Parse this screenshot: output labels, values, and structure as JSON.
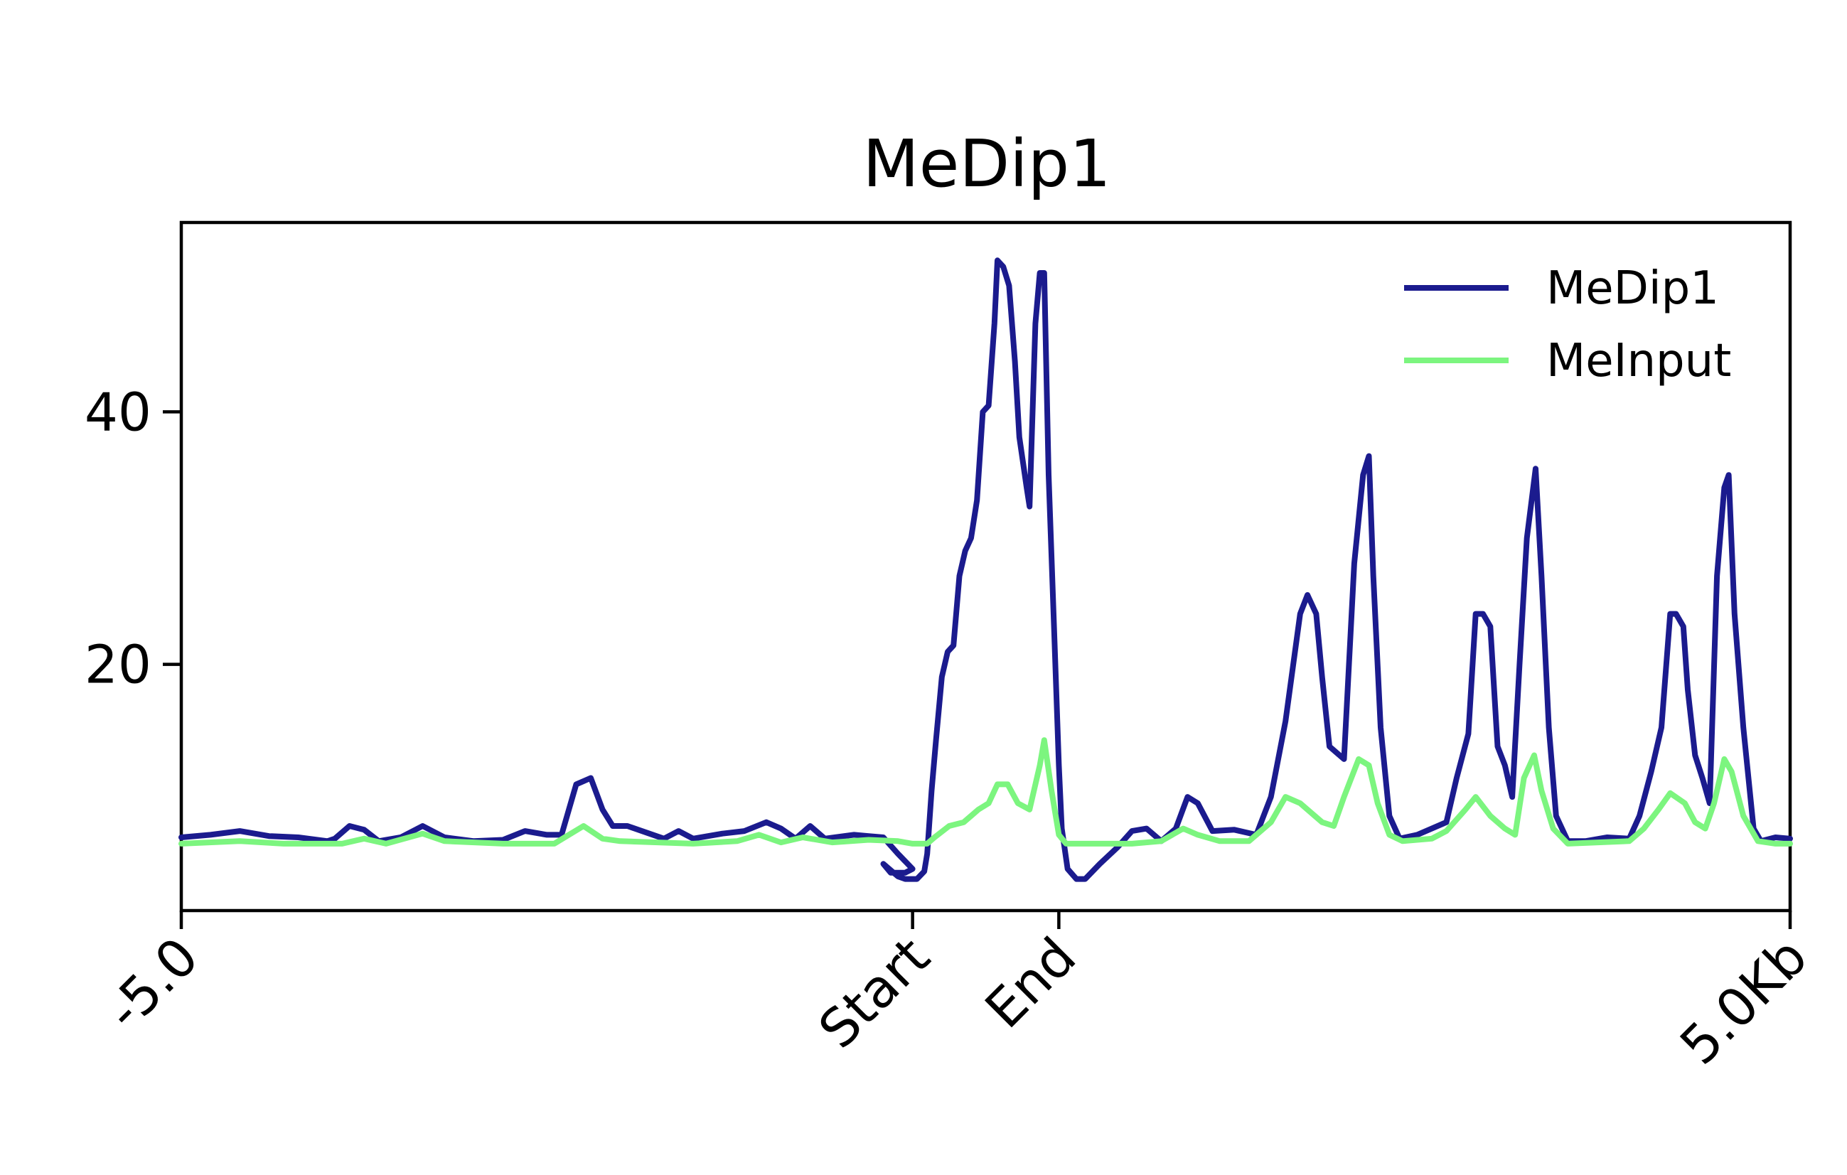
{
  "chart_data": {
    "type": "line",
    "title": "MeDip1",
    "xlabel": "",
    "ylabel": "",
    "x_ticks": [
      {
        "pos": -5.0,
        "label": "-5.0"
      },
      {
        "pos": 0.0,
        "label": "Start"
      },
      {
        "pos": 1.0,
        "label": "End"
      },
      {
        "pos": 6.0,
        "label": "5.0Kb"
      }
    ],
    "y_ticks": [
      {
        "value": 20,
        "label": "20"
      },
      {
        "value": 40,
        "label": "40"
      }
    ],
    "xlim": [
      -5.0,
      6.0
    ],
    "ylim": [
      0.5,
      55
    ],
    "grid": false,
    "legend_position": "top-right",
    "series": [
      {
        "name": "MeDip1",
        "color": "#1b1b8e",
        "points": [
          [
            -5.0,
            6.3
          ],
          [
            -4.8,
            6.5
          ],
          [
            -4.6,
            6.8
          ],
          [
            -4.4,
            6.4
          ],
          [
            -4.2,
            6.3
          ],
          [
            -4.0,
            6.0
          ],
          [
            -3.95,
            6.2
          ],
          [
            -3.85,
            7.2
          ],
          [
            -3.75,
            6.9
          ],
          [
            -3.65,
            6.0
          ],
          [
            -3.5,
            6.3
          ],
          [
            -3.35,
            7.2
          ],
          [
            -3.2,
            6.3
          ],
          [
            -3.0,
            6.0
          ],
          [
            -2.8,
            6.1
          ],
          [
            -2.65,
            6.8
          ],
          [
            -2.5,
            6.5
          ],
          [
            -2.4,
            6.5
          ],
          [
            -2.35,
            8.5
          ],
          [
            -2.3,
            10.5
          ],
          [
            -2.2,
            11.0
          ],
          [
            -2.12,
            8.5
          ],
          [
            -2.05,
            7.2
          ],
          [
            -1.95,
            7.2
          ],
          [
            -1.8,
            6.6
          ],
          [
            -1.7,
            6.2
          ],
          [
            -1.6,
            6.8
          ],
          [
            -1.5,
            6.2
          ],
          [
            -1.3,
            6.6
          ],
          [
            -1.15,
            6.8
          ],
          [
            -1.0,
            7.5
          ],
          [
            -0.9,
            7.0
          ],
          [
            -0.8,
            6.2
          ],
          [
            -0.7,
            7.2
          ],
          [
            -0.6,
            6.2
          ],
          [
            -0.4,
            6.5
          ],
          [
            -0.3,
            6.4
          ],
          [
            -0.2,
            6.3
          ],
          [
            -0.1,
            5.0
          ],
          [
            0.0,
            3.8
          ],
          [
            -0.05,
            3.5
          ],
          [
            -0.15,
            3.5
          ],
          [
            -0.2,
            4.2
          ],
          [
            -0.1,
            3.2
          ],
          [
            -0.05,
            3.0
          ],
          [
            0.03,
            3.0
          ],
          [
            0.08,
            3.6
          ],
          [
            0.1,
            5.0
          ],
          [
            0.13,
            10.0
          ],
          [
            0.16,
            14.0
          ],
          [
            0.2,
            19.0
          ],
          [
            0.24,
            21.0
          ],
          [
            0.28,
            21.5
          ],
          [
            0.32,
            27.0
          ],
          [
            0.36,
            29.0
          ],
          [
            0.4,
            30.0
          ],
          [
            0.44,
            33.0
          ],
          [
            0.48,
            40.0
          ],
          [
            0.52,
            40.5
          ],
          [
            0.56,
            47.0
          ],
          [
            0.58,
            52.0
          ],
          [
            0.62,
            51.5
          ],
          [
            0.66,
            50.0
          ],
          [
            0.7,
            44.0
          ],
          [
            0.73,
            38.0
          ],
          [
            0.78,
            34.0
          ],
          [
            0.8,
            32.5
          ],
          [
            0.84,
            47.0
          ],
          [
            0.87,
            51.0
          ],
          [
            0.9,
            51.0
          ],
          [
            0.93,
            35.0
          ],
          [
            0.97,
            22.0
          ],
          [
            1.0,
            12.0
          ],
          [
            1.02,
            7.0
          ],
          [
            1.06,
            3.8
          ],
          [
            1.12,
            3.0
          ],
          [
            1.18,
            3.0
          ],
          [
            1.28,
            4.2
          ],
          [
            1.4,
            5.5
          ],
          [
            1.5,
            6.8
          ],
          [
            1.6,
            7.0
          ],
          [
            1.7,
            6.0
          ],
          [
            1.8,
            7.0
          ],
          [
            1.88,
            9.5
          ],
          [
            1.95,
            9.0
          ],
          [
            2.05,
            6.8
          ],
          [
            2.2,
            6.9
          ],
          [
            2.35,
            6.5
          ],
          [
            2.45,
            9.5
          ],
          [
            2.55,
            15.5
          ],
          [
            2.65,
            24.0
          ],
          [
            2.7,
            25.5
          ],
          [
            2.76,
            24.0
          ],
          [
            2.8,
            19.0
          ],
          [
            2.85,
            13.5
          ],
          [
            2.9,
            13.0
          ],
          [
            2.95,
            12.5
          ],
          [
            3.02,
            28.0
          ],
          [
            3.08,
            35.0
          ],
          [
            3.12,
            36.5
          ],
          [
            3.15,
            27.0
          ],
          [
            3.2,
            15.0
          ],
          [
            3.26,
            8.0
          ],
          [
            3.33,
            6.2
          ],
          [
            3.45,
            6.5
          ],
          [
            3.55,
            7.0
          ],
          [
            3.65,
            7.5
          ],
          [
            3.72,
            11.0
          ],
          [
            3.8,
            14.5
          ],
          [
            3.85,
            24.0
          ],
          [
            3.9,
            24.0
          ],
          [
            3.95,
            23.0
          ],
          [
            4.0,
            13.5
          ],
          [
            4.05,
            12.0
          ],
          [
            4.1,
            9.5
          ],
          [
            4.15,
            20.0
          ],
          [
            4.2,
            30.0
          ],
          [
            4.26,
            35.5
          ],
          [
            4.3,
            27.0
          ],
          [
            4.35,
            15.0
          ],
          [
            4.4,
            8.0
          ],
          [
            4.48,
            6.0
          ],
          [
            4.6,
            6.0
          ],
          [
            4.75,
            6.3
          ],
          [
            4.9,
            6.2
          ],
          [
            4.97,
            8.0
          ],
          [
            5.05,
            11.5
          ],
          [
            5.12,
            15.0
          ],
          [
            5.18,
            24.0
          ],
          [
            5.22,
            24.0
          ],
          [
            5.27,
            23.0
          ],
          [
            5.3,
            18.0
          ],
          [
            5.35,
            12.8
          ],
          [
            5.4,
            11.0
          ],
          [
            5.45,
            9.0
          ],
          [
            5.5,
            27.0
          ],
          [
            5.55,
            34.0
          ],
          [
            5.58,
            35.0
          ],
          [
            5.62,
            24.0
          ],
          [
            5.68,
            15.0
          ],
          [
            5.75,
            7.0
          ],
          [
            5.8,
            6.0
          ],
          [
            5.9,
            6.3
          ],
          [
            6.0,
            6.2
          ]
        ]
      },
      {
        "name": "MeInput",
        "color": "#7cf57f",
        "points": [
          [
            -5.0,
            5.8
          ],
          [
            -4.6,
            6.0
          ],
          [
            -4.3,
            5.8
          ],
          [
            -3.9,
            5.8
          ],
          [
            -3.75,
            6.2
          ],
          [
            -3.6,
            5.8
          ],
          [
            -3.35,
            6.6
          ],
          [
            -3.2,
            6.0
          ],
          [
            -2.8,
            5.8
          ],
          [
            -2.45,
            5.8
          ],
          [
            -2.35,
            6.5
          ],
          [
            -2.25,
            7.2
          ],
          [
            -2.12,
            6.2
          ],
          [
            -2.0,
            6.0
          ],
          [
            -1.5,
            5.8
          ],
          [
            -1.2,
            6.0
          ],
          [
            -1.05,
            6.5
          ],
          [
            -0.9,
            5.9
          ],
          [
            -0.75,
            6.3
          ],
          [
            -0.55,
            5.9
          ],
          [
            -0.3,
            6.1
          ],
          [
            -0.1,
            6.0
          ],
          [
            0.0,
            5.8
          ],
          [
            0.1,
            5.8
          ],
          [
            0.15,
            6.3
          ],
          [
            0.25,
            7.2
          ],
          [
            0.35,
            7.5
          ],
          [
            0.4,
            8.0
          ],
          [
            0.45,
            8.5
          ],
          [
            0.52,
            9.0
          ],
          [
            0.58,
            10.5
          ],
          [
            0.65,
            10.5
          ],
          [
            0.72,
            9.0
          ],
          [
            0.8,
            8.5
          ],
          [
            0.87,
            12.0
          ],
          [
            0.9,
            14.0
          ],
          [
            0.95,
            10.0
          ],
          [
            1.0,
            6.5
          ],
          [
            1.05,
            5.8
          ],
          [
            1.5,
            5.8
          ],
          [
            1.7,
            6.0
          ],
          [
            1.85,
            7.0
          ],
          [
            1.95,
            6.5
          ],
          [
            2.1,
            6.0
          ],
          [
            2.3,
            6.0
          ],
          [
            2.45,
            7.5
          ],
          [
            2.55,
            9.5
          ],
          [
            2.65,
            9.0
          ],
          [
            2.75,
            8.0
          ],
          [
            2.8,
            7.5
          ],
          [
            2.88,
            7.2
          ],
          [
            2.95,
            9.5
          ],
          [
            3.05,
            12.5
          ],
          [
            3.12,
            12.0
          ],
          [
            3.18,
            9.0
          ],
          [
            3.26,
            6.5
          ],
          [
            3.35,
            6.0
          ],
          [
            3.55,
            6.2
          ],
          [
            3.65,
            6.8
          ],
          [
            3.78,
            8.5
          ],
          [
            3.85,
            9.5
          ],
          [
            3.95,
            8.0
          ],
          [
            4.05,
            7.0
          ],
          [
            4.12,
            6.5
          ],
          [
            4.18,
            11.0
          ],
          [
            4.25,
            12.8
          ],
          [
            4.3,
            10.0
          ],
          [
            4.38,
            7.0
          ],
          [
            4.48,
            5.8
          ],
          [
            4.9,
            6.0
          ],
          [
            5.0,
            7.0
          ],
          [
            5.1,
            8.5
          ],
          [
            5.18,
            9.8
          ],
          [
            5.28,
            9.0
          ],
          [
            5.35,
            7.5
          ],
          [
            5.42,
            7.0
          ],
          [
            5.48,
            9.0
          ],
          [
            5.55,
            12.5
          ],
          [
            5.6,
            11.5
          ],
          [
            5.68,
            8.0
          ],
          [
            5.78,
            6.0
          ],
          [
            5.9,
            5.8
          ],
          [
            6.0,
            5.8
          ]
        ]
      }
    ]
  }
}
